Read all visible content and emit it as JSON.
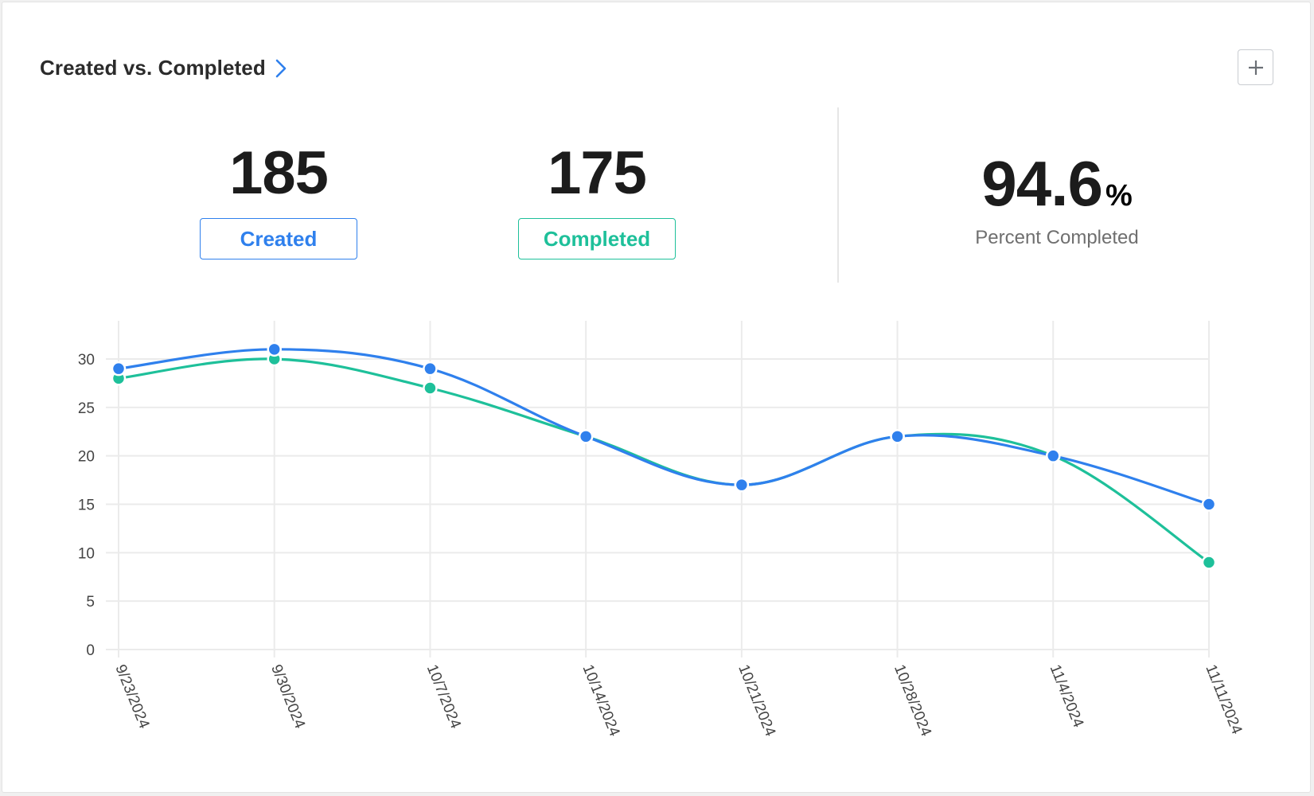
{
  "card": {
    "title": "Created vs. Completed",
    "add_button": "+"
  },
  "stats": {
    "created": {
      "value": "185",
      "label": "Created"
    },
    "completed": {
      "value": "175",
      "label": "Completed"
    },
    "percent": {
      "value": "94.6",
      "unit": "%",
      "label": "Percent Completed"
    }
  },
  "colors": {
    "created": "#2f80ed",
    "completed": "#1ec09a",
    "grid": "#ebebeb",
    "axis_text": "#444444"
  },
  "chart_data": {
    "type": "line",
    "x": [
      "9/23/2024",
      "9/30/2024",
      "10/7/2024",
      "10/14/2024",
      "10/21/2024",
      "10/28/2024",
      "11/4/2024",
      "11/11/2024"
    ],
    "series": [
      {
        "name": "Created",
        "values": [
          29,
          31,
          29,
          22,
          17,
          22,
          20,
          15
        ]
      },
      {
        "name": "Completed",
        "values": [
          28,
          30,
          27,
          22,
          17,
          22,
          20,
          9
        ]
      }
    ],
    "yticks": [
      0,
      5,
      10,
      15,
      20,
      25,
      30
    ],
    "ylim": [
      0,
      30
    ],
    "grid": true,
    "smooth": true
  }
}
